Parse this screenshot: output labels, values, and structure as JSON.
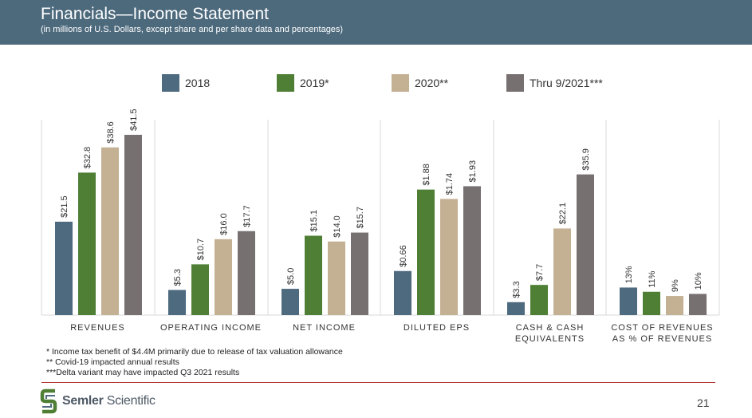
{
  "header": {
    "title": "Financials—Income Statement",
    "subtitle": "(in millions of U.S. Dollars, except share and per share data and percentages)"
  },
  "legend": [
    {
      "label": "2018",
      "color": "#4e6a7f"
    },
    {
      "label": "2019*",
      "color": "#4f7f35"
    },
    {
      "label": "2020**",
      "color": "#c4b093"
    },
    {
      "label": "Thru 9/2021***",
      "color": "#777070"
    }
  ],
  "chart_data": {
    "type": "bar",
    "series_names": [
      "2018",
      "2019*",
      "2020**",
      "Thru 9/2021***"
    ],
    "colors": [
      "#4e6a7f",
      "#4f7f35",
      "#c4b093",
      "#777070"
    ],
    "groups": [
      {
        "label_lines": [
          "REVENUES"
        ],
        "values": [
          21.5,
          32.8,
          38.6,
          41.5
        ],
        "labels": [
          "$21.5",
          "$32.8",
          "$38.6",
          "$41.5"
        ],
        "max": 41.5
      },
      {
        "label_lines": [
          "OPERATING INCOME"
        ],
        "values": [
          5.3,
          10.7,
          16.0,
          17.7
        ],
        "labels": [
          "$5.3",
          "$10.7",
          "$16.0",
          "$17.7"
        ],
        "max": 38
      },
      {
        "label_lines": [
          "NET INCOME"
        ],
        "values": [
          5.0,
          15.1,
          14.0,
          15.7
        ],
        "labels": [
          "$5.0",
          "$15.1",
          "$14.0",
          "$15.7"
        ],
        "max": 34.3
      },
      {
        "label_lines": [
          "DILUTED EPS"
        ],
        "values": [
          0.66,
          1.88,
          1.74,
          1.93
        ],
        "labels": [
          "$0.66",
          "$1.88",
          "$1.74",
          "$1.93"
        ],
        "max": 2.7
      },
      {
        "label_lines": [
          "CASH & CASH",
          "EQUIVALENTS"
        ],
        "values": [
          3.3,
          7.7,
          22.1,
          35.9
        ],
        "labels": [
          "$3.3",
          "$7.7",
          "$22.1",
          "$35.9"
        ],
        "max": 46
      },
      {
        "label_lines": [
          "COST OF REVENUES",
          "AS % OF REVENUES"
        ],
        "values": [
          13,
          11,
          9,
          10
        ],
        "labels": [
          "13%",
          "11%",
          "9%",
          "10%"
        ],
        "max": 85
      }
    ]
  },
  "footnotes": [
    "* Income tax benefit of $4.4M primarily due to release of tax valuation allowance",
    "** Covid-19 impacted annual results",
    "***Delta variant may have impacted Q3 2021 results"
  ],
  "logo": {
    "brand": "Semler",
    "suffix": " Scientific"
  },
  "page_number": "21"
}
